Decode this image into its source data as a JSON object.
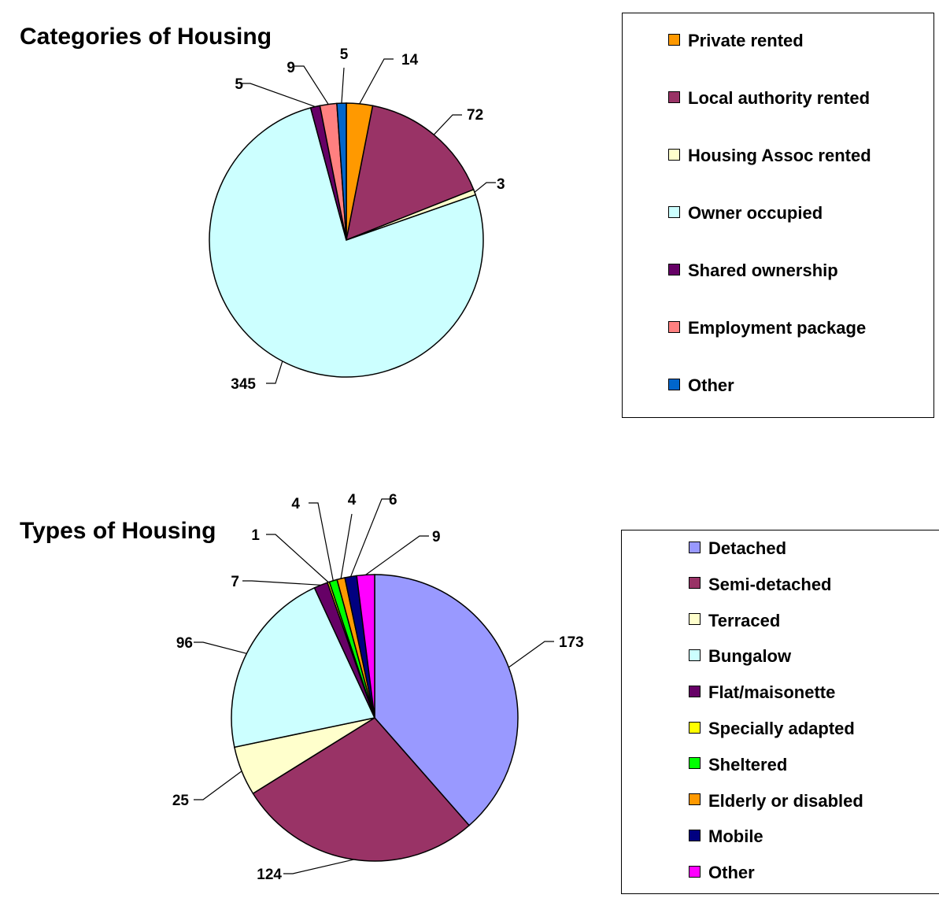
{
  "chart_data": [
    {
      "type": "pie",
      "title": "Categories of Housing",
      "categories": [
        "Private rented",
        "Local authority rented",
        "Housing Assoc rented",
        "Owner occupied",
        "Shared ownership",
        "Employment package",
        "Other"
      ],
      "values": [
        14,
        72,
        3,
        345,
        5,
        9,
        5
      ],
      "colors": [
        "#ff9900",
        "#993366",
        "#ffffcc",
        "#ccffff",
        "#660066",
        "#ff8080",
        "#0066cc"
      ],
      "legend_position": "right"
    },
    {
      "type": "pie",
      "title": "Types of Housing",
      "categories": [
        "Detached",
        "Semi-detached",
        "Terraced",
        "Bungalow",
        "Flat/maisonette",
        "Specially adapted",
        "Sheltered",
        "Elderly or disabled",
        "Mobile",
        "Other"
      ],
      "values": [
        173,
        124,
        25,
        96,
        7,
        1,
        4,
        4,
        6,
        9
      ],
      "colors": [
        "#9999ff",
        "#993366",
        "#ffffcc",
        "#ccffff",
        "#660066",
        "#ffff00",
        "#00ff00",
        "#ff9900",
        "#000080",
        "#ff00ff"
      ],
      "legend_position": "right"
    }
  ]
}
